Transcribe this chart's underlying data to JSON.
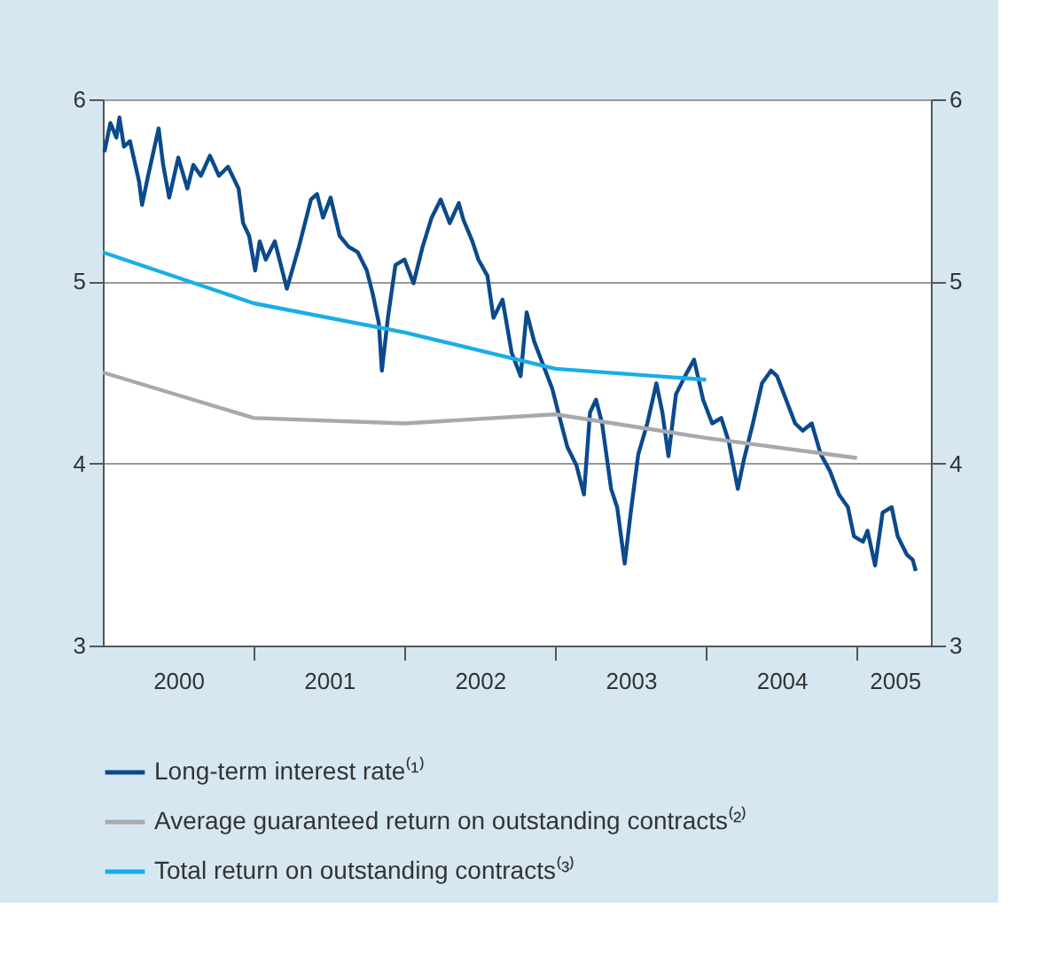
{
  "chart_data": {
    "type": "line",
    "xlim": [
      2000,
      2005.49
    ],
    "xticks": [
      {
        "value": 2000.5,
        "label": "2000"
      },
      {
        "value": 2001,
        "label": null
      },
      {
        "value": 2001.5,
        "label": "2001"
      },
      {
        "value": 2002,
        "label": null
      },
      {
        "value": 2002.5,
        "label": "2002"
      },
      {
        "value": 2003,
        "label": null
      },
      {
        "value": 2003.5,
        "label": "2003"
      },
      {
        "value": 2004,
        "label": null
      },
      {
        "value": 2004.5,
        "label": "2004"
      },
      {
        "value": 2005,
        "label": null
      },
      {
        "value": 2005.25,
        "label": "2005"
      }
    ],
    "ylim": [
      3,
      6
    ],
    "yticks": [
      3,
      4,
      5,
      6
    ],
    "y2lim": [
      3,
      6
    ],
    "y2ticks": [
      3,
      4,
      5,
      6
    ],
    "grid": "y",
    "legend": "bottom",
    "line_style": "solid",
    "marker": "none",
    "series": [
      {
        "name": "Long-term interest rate⁽¹⁾",
        "color": "#0b4a8b",
        "x": [
          2000.01,
          2000.05,
          2000.09,
          2000.11,
          2000.14,
          2000.18,
          2000.24,
          2000.26,
          2000.3,
          2000.37,
          2000.4,
          2000.44,
          2000.5,
          2000.56,
          2000.6,
          2000.65,
          2000.71,
          2000.77,
          2000.83,
          2000.9,
          2000.93,
          2000.97,
          2001.01,
          2001.04,
          2001.08,
          2001.14,
          2001.22,
          2001.3,
          2001.38,
          2001.42,
          2001.46,
          2001.51,
          2001.57,
          2001.63,
          2001.69,
          2001.75,
          2001.79,
          2001.83,
          2001.85,
          2001.89,
          2001.94,
          2002.0,
          2002.06,
          2002.12,
          2002.18,
          2002.24,
          2002.3,
          2002.36,
          2002.39,
          2002.45,
          2002.49,
          2002.55,
          2002.59,
          2002.65,
          2002.71,
          2002.77,
          2002.81,
          2002.86,
          2002.92,
          2002.98,
          2003.02,
          2003.08,
          2003.14,
          2003.19,
          2003.23,
          2003.27,
          2003.31,
          2003.37,
          2003.41,
          2003.46,
          2003.5,
          2003.55,
          2003.61,
          2003.67,
          2003.71,
          2003.75,
          2003.8,
          2003.86,
          2003.92,
          2003.98,
          2004.04,
          2004.1,
          2004.15,
          2004.21,
          2004.25,
          2004.31,
          2004.37,
          2004.43,
          2004.47,
          2004.53,
          2004.59,
          2004.64,
          2004.7,
          2004.76,
          2004.82,
          2004.88,
          2004.94,
          2004.98,
          2005.04,
          2005.07,
          2005.12,
          2005.17,
          2005.23,
          2005.27,
          2005.33,
          2005.37,
          2005.39
        ],
        "values": [
          5.71,
          5.87,
          5.79,
          5.9,
          5.74,
          5.77,
          5.55,
          5.42,
          5.58,
          5.84,
          5.64,
          5.46,
          5.68,
          5.51,
          5.64,
          5.58,
          5.69,
          5.58,
          5.63,
          5.51,
          5.32,
          5.25,
          5.06,
          5.22,
          5.12,
          5.22,
          4.96,
          5.19,
          5.45,
          5.48,
          5.35,
          5.46,
          5.25,
          5.19,
          5.16,
          5.06,
          4.93,
          4.77,
          4.51,
          4.8,
          5.09,
          5.12,
          4.99,
          5.19,
          5.35,
          5.45,
          5.32,
          5.43,
          5.34,
          5.22,
          5.12,
          5.03,
          4.8,
          4.9,
          4.61,
          4.48,
          4.83,
          4.67,
          4.54,
          4.41,
          4.28,
          4.09,
          3.99,
          3.83,
          4.28,
          4.35,
          4.22,
          3.86,
          3.76,
          3.45,
          3.73,
          4.05,
          4.22,
          4.44,
          4.28,
          4.04,
          4.38,
          4.48,
          4.57,
          4.35,
          4.22,
          4.25,
          4.12,
          3.86,
          4.02,
          4.22,
          4.44,
          4.51,
          4.48,
          4.35,
          4.22,
          4.18,
          4.22,
          4.05,
          3.96,
          3.83,
          3.76,
          3.6,
          3.57,
          3.63,
          3.44,
          3.73,
          3.76,
          3.6,
          3.5,
          3.47,
          3.41
        ]
      },
      {
        "name": "Average guaranteed return on outstanding contracts⁽²⁾",
        "color": "#a7a9ac",
        "x": [
          2000,
          2001,
          2002,
          2003,
          2004,
          2005
        ],
        "values": [
          4.5,
          4.25,
          4.22,
          4.27,
          4.14,
          4.03
        ]
      },
      {
        "name": "Total return on outstanding contracts⁽³⁾",
        "color": "#1aaee6",
        "x": [
          2000,
          2001,
          2002,
          2003,
          2004
        ],
        "values": [
          5.16,
          4.88,
          4.72,
          4.52,
          4.46
        ]
      }
    ]
  }
}
